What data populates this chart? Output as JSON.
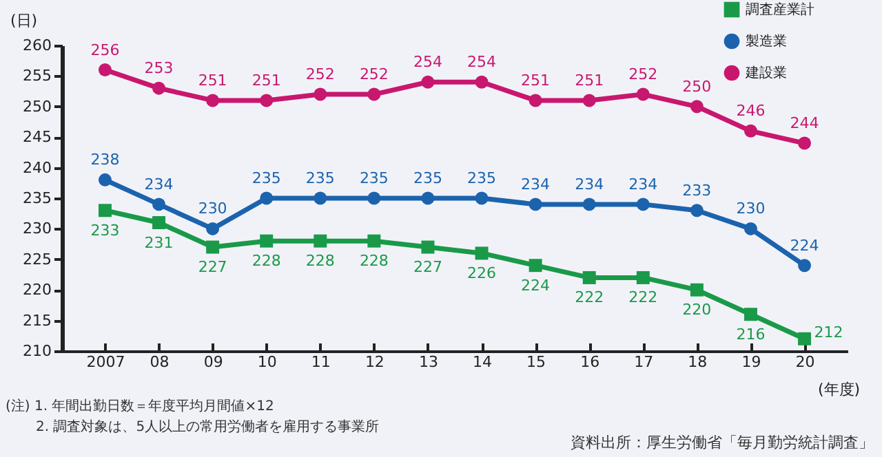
{
  "chart_data": {
    "type": "line",
    "ylabel": "(日)",
    "xlabel": "(年度)",
    "categories": [
      "2007",
      "08",
      "09",
      "10",
      "11",
      "12",
      "13",
      "14",
      "15",
      "16",
      "17",
      "18",
      "19",
      "20"
    ],
    "series": [
      {
        "name": "調査産業計",
        "color": "#1a9a48",
        "marker": "square",
        "values": [
          233,
          231,
          227,
          228,
          228,
          228,
          227,
          226,
          224,
          222,
          222,
          220,
          216,
          212
        ]
      },
      {
        "name": "製造業",
        "color": "#1b63ad",
        "marker": "circle",
        "values": [
          238,
          234,
          230,
          235,
          235,
          235,
          235,
          235,
          234,
          234,
          234,
          233,
          230,
          224
        ]
      },
      {
        "name": "建設業",
        "color": "#c8176e",
        "marker": "circle",
        "values": [
          256,
          253,
          251,
          251,
          252,
          252,
          254,
          254,
          251,
          251,
          252,
          250,
          246,
          244
        ]
      }
    ],
    "ylim": [
      210,
      260
    ],
    "yticks": [
      210,
      215,
      220,
      225,
      230,
      235,
      240,
      245,
      250,
      255,
      260
    ],
    "grid": false,
    "legend": "top right",
    "data_labels": true,
    "annotations": [
      "(注) 1. 年間出勤日数＝年度平均月間値×12",
      "2. 調査対象は、5人以上の常用労働者を雇用する事業所",
      "資料出所：厚生労働省「毎月勤労統計調査」"
    ]
  }
}
